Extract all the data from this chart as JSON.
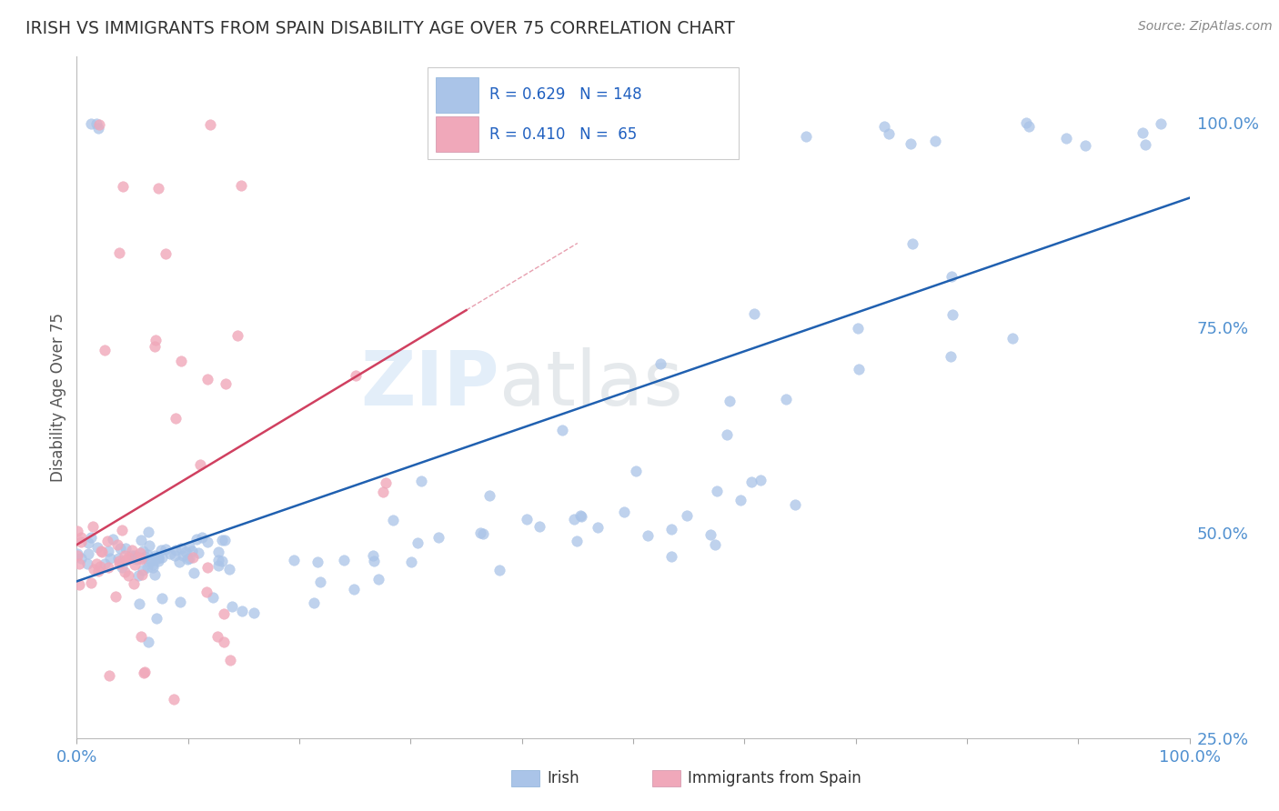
{
  "title": "IRISH VS IMMIGRANTS FROM SPAIN DISABILITY AGE OVER 75 CORRELATION CHART",
  "source": "Source: ZipAtlas.com",
  "ylabel": "Disability Age Over 75",
  "xmin": 0.0,
  "xmax": 1.0,
  "ymin": 0.28,
  "ymax": 1.08,
  "irish_R": 0.629,
  "irish_N": 148,
  "spain_R": 0.41,
  "spain_N": 65,
  "irish_color": "#aac4e8",
  "spain_color": "#f0a8ba",
  "irish_line_color": "#2060b0",
  "spain_line_color": "#d04060",
  "background_color": "#ffffff",
  "grid_color": "#d8d8d8",
  "title_color": "#333333",
  "axis_label_color": "#5090d0",
  "legend_border_color": "#cccccc",
  "legend_text_color": "#2060c0"
}
